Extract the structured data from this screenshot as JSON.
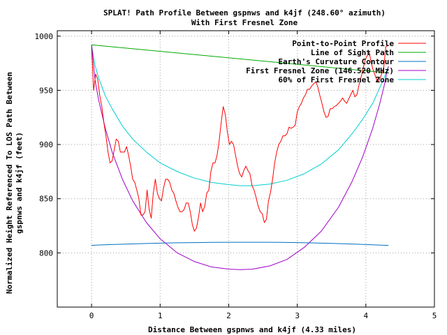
{
  "chart_data": {
    "type": "line",
    "title": "SPLAT! Path Profile Between gspnws and k4jf (248.60° azimuth)",
    "subtitle": "With First Fresnel Zone",
    "xlabel": "Distance Between gspnws and k4jf (4.33 miles)",
    "ylabel_lines": [
      "Normalized Height Referenced To LOS Path Between",
      "gspnws and k4jf (feet)"
    ],
    "xlim": [
      -0.5,
      5
    ],
    "ylim": [
      750,
      1005
    ],
    "x_ticks": [
      0,
      1,
      2,
      3,
      4,
      5
    ],
    "y_ticks": [
      800,
      850,
      900,
      950,
      1000
    ],
    "grid": true,
    "legend_position": "top-right",
    "series": [
      {
        "name": "Point-to-Point Profile",
        "color": "#ff0000",
        "x": [
          0,
          0.03,
          0.06,
          0.09,
          0.12,
          0.15,
          0.18,
          0.21,
          0.24,
          0.27,
          0.3,
          0.33,
          0.36,
          0.39,
          0.42,
          0.45,
          0.48,
          0.51,
          0.54,
          0.57,
          0.6,
          0.63,
          0.66,
          0.69,
          0.72,
          0.75,
          0.78,
          0.81,
          0.84,
          0.87,
          0.9,
          0.93,
          0.96,
          0.99,
          1.02,
          1.05,
          1.08,
          1.11,
          1.14,
          1.17,
          1.2,
          1.23,
          1.26,
          1.29,
          1.32,
          1.35,
          1.38,
          1.41,
          1.44,
          1.47,
          1.5,
          1.53,
          1.56,
          1.59,
          1.62,
          1.65,
          1.68,
          1.71,
          1.74,
          1.77,
          1.8,
          1.83,
          1.86,
          1.89,
          1.92,
          1.95,
          1.98,
          2.01,
          2.04,
          2.07,
          2.1,
          2.13,
          2.16,
          2.19,
          2.22,
          2.25,
          2.28,
          2.31,
          2.34,
          2.37,
          2.4,
          2.43,
          2.46,
          2.49,
          2.52,
          2.55,
          2.58,
          2.61,
          2.64,
          2.67,
          2.7,
          2.73,
          2.76,
          2.79,
          2.82,
          2.85,
          2.88,
          2.91,
          2.94,
          2.97,
          3.0,
          3.03,
          3.06,
          3.09,
          3.12,
          3.15,
          3.18,
          3.21,
          3.24,
          3.27,
          3.3,
          3.33,
          3.36,
          3.39,
          3.42,
          3.45,
          3.48,
          3.51,
          3.54,
          3.57,
          3.6,
          3.63,
          3.66,
          3.69,
          3.72,
          3.75,
          3.78,
          3.81,
          3.84,
          3.87,
          3.9,
          3.93,
          3.96,
          3.99,
          4.02,
          4.05,
          4.08,
          4.11,
          4.14,
          4.17,
          4.2,
          4.23,
          4.26,
          4.29,
          4.33
        ],
        "values": [
          990,
          950,
          965,
          960,
          945,
          935,
          920,
          908,
          893,
          883,
          885,
          895,
          905,
          903,
          893,
          893,
          893,
          898,
          890,
          880,
          868,
          865,
          858,
          850,
          835,
          835,
          838,
          858,
          840,
          832,
          855,
          868,
          855,
          850,
          848,
          860,
          868,
          868,
          865,
          858,
          855,
          848,
          842,
          838,
          838,
          840,
          846,
          846,
          838,
          826,
          820,
          823,
          833,
          846,
          838,
          843,
          855,
          858,
          875,
          883,
          883,
          890,
          903,
          920,
          935,
          928,
          912,
          900,
          903,
          900,
          890,
          880,
          873,
          870,
          876,
          880,
          876,
          873,
          862,
          858,
          851,
          843,
          838,
          836,
          828,
          831,
          848,
          856,
          868,
          883,
          893,
          900,
          903,
          908,
          908,
          910,
          916,
          915,
          916,
          918,
          930,
          935,
          938,
          943,
          946,
          951,
          951,
          954,
          956,
          958,
          953,
          945,
          938,
          930,
          925,
          926,
          933,
          933,
          935,
          936,
          938,
          940,
          943,
          940,
          938,
          942,
          946,
          950,
          944,
          946,
          955,
          962,
          970,
          978,
          982,
          985,
          975,
          968,
          963,
          958,
          960,
          965,
          970,
          990,
          992
        ]
      },
      {
        "name": "Line of Sight Path",
        "color": "#00aa00",
        "x": [
          0,
          4.33
        ],
        "values": [
          992,
          966
        ]
      },
      {
        "name": "Earth's Curvature Contour",
        "color": "#0070c0",
        "x": [
          0,
          0.25,
          0.5,
          0.75,
          1.0,
          1.25,
          1.5,
          1.75,
          2.0,
          2.25,
          2.5,
          2.75,
          3.0,
          3.25,
          3.5,
          3.75,
          4.0,
          4.25,
          4.33
        ],
        "values": [
          807,
          807.6,
          808.1,
          808.6,
          809,
          809.3,
          809.5,
          809.7,
          809.8,
          809.8,
          809.8,
          809.7,
          809.5,
          809.2,
          808.8,
          808.3,
          807.7,
          807.1,
          806.9
        ]
      },
      {
        "name": "First Fresnel Zone (146.520 MHz)",
        "color": "#a000c8",
        "x": [
          0,
          0.05,
          0.1,
          0.2,
          0.3,
          0.45,
          0.6,
          0.8,
          1.0,
          1.25,
          1.5,
          1.75,
          2.0,
          2.17,
          2.35,
          2.6,
          2.85,
          3.1,
          3.35,
          3.6,
          3.8,
          3.95,
          4.1,
          4.2,
          4.27,
          4.31,
          4.33
        ],
        "values": [
          992,
          960,
          942,
          915,
          893,
          868,
          848,
          828,
          813,
          800,
          792,
          787,
          785,
          784.5,
          785,
          788,
          794,
          805,
          820,
          842,
          866,
          888,
          915,
          937,
          955,
          968,
          972
        ]
      },
      {
        "name": "60% of First Fresnel Zone",
        "color": "#00ced1",
        "x": [
          0,
          0.05,
          0.1,
          0.2,
          0.3,
          0.45,
          0.6,
          0.8,
          1.0,
          1.25,
          1.5,
          1.75,
          2.0,
          2.17,
          2.35,
          2.6,
          2.85,
          3.1,
          3.35,
          3.6,
          3.8,
          3.95,
          4.1,
          4.2,
          4.27,
          4.31,
          4.33
        ],
        "values": [
          992,
          973,
          962,
          945,
          933,
          917,
          905,
          893,
          883,
          875,
          869,
          865,
          863,
          862,
          862,
          863.5,
          867,
          873,
          882,
          895,
          910,
          923,
          938,
          952,
          962,
          969,
          972
        ]
      }
    ]
  }
}
